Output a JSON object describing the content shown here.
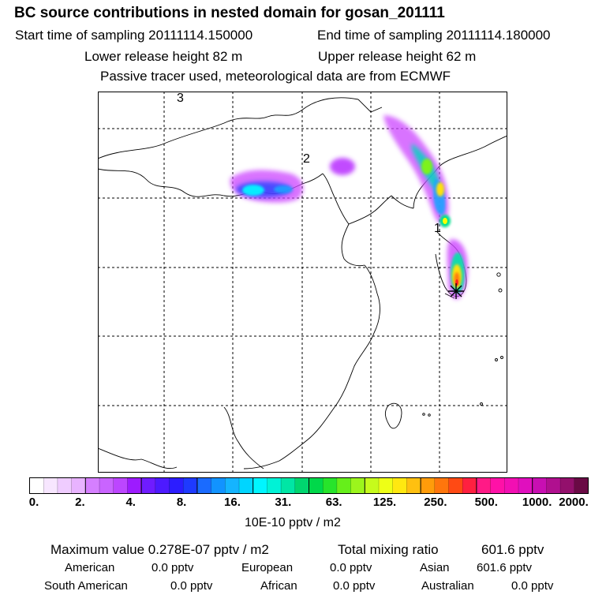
{
  "header": {
    "title": "BC  source contributions in nested domain for gosan_201111",
    "start_label": "Start time of sampling 20111114.150000",
    "end_label": "End time of sampling 20111114.180000",
    "lower_label": "Lower release height   82 m",
    "upper_label": "Upper release height   62 m",
    "note": "Passive tracer used, meteorological data are from ECMWF"
  },
  "map": {
    "labels": [
      "3",
      "2",
      "1"
    ],
    "receptor_marker": "star-cross-icon",
    "plume_colors": [
      "#f2c8ff",
      "#cc44ff",
      "#0000ff",
      "#00ffff",
      "#00cc66",
      "#ffff00",
      "#ff8000",
      "#ff0000"
    ]
  },
  "colorbar": {
    "ticks": [
      "0.",
      "2.",
      "4.",
      "8.",
      "16.",
      "31.",
      "63.",
      "125.",
      "250.",
      "500.",
      "1000.",
      "2000."
    ],
    "colors": [
      "#ffffff",
      "#f7e6ff",
      "#efccff",
      "#e8b3ff",
      "#d57fff",
      "#c964ff",
      "#bc46ff",
      "#9d1bff",
      "#6f1cff",
      "#4d1aff",
      "#2c1dff",
      "#1e3aff",
      "#1a6bff",
      "#1293ff",
      "#15b4ff",
      "#00d5ff",
      "#00f5ff",
      "#00f2d6",
      "#00e6a5",
      "#00d66f",
      "#00d84a",
      "#27e42b",
      "#66ef1a",
      "#9cf51c",
      "#c6fb1c",
      "#eeff16",
      "#ffe810",
      "#ffc010",
      "#ff9c0a",
      "#ff760c",
      "#ff4a14",
      "#ff2040",
      "#ff1a86",
      "#ff11a7",
      "#f20fb3",
      "#e00fbe",
      "#c80fb2",
      "#b0108f",
      "#93106c",
      "#6a0a45"
    ],
    "unit": "10E-10 pptv / m2"
  },
  "summary": {
    "max_label": "Maximum value  0.278E-07 pptv / m2",
    "total_label": "Total mixing ratio",
    "total_value": "601.6 pptv",
    "sources": [
      {
        "name": "American",
        "value": "0.0 pptv"
      },
      {
        "name": "European",
        "value": "0.0 pptv"
      },
      {
        "name": "Asian",
        "value": "601.6 pptv"
      },
      {
        "name": "South American",
        "value": "0.0 pptv"
      },
      {
        "name": "African",
        "value": "0.0 pptv"
      },
      {
        "name": "Australian",
        "value": "0.0 pptv"
      }
    ]
  }
}
